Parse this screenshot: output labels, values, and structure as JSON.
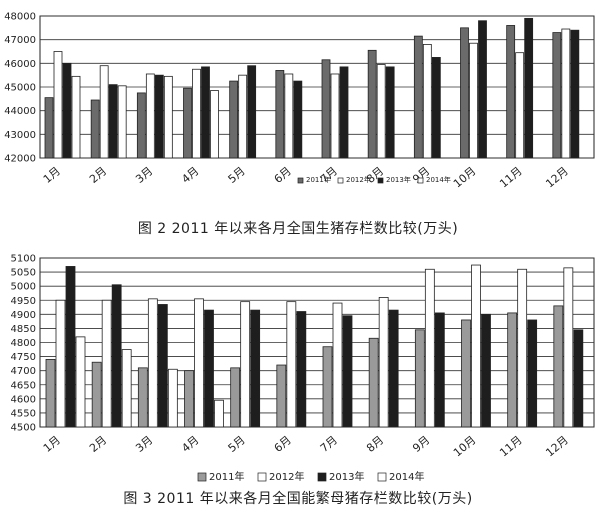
{
  "chart_data": [
    {
      "type": "bar",
      "title": "图 2   2011 年以来各月全国生猪存栏数比较(万头)",
      "xlabel": "",
      "ylabel": "",
      "ylim": [
        42000,
        48000
      ],
      "yticks": [
        42000,
        43000,
        44000,
        45000,
        46000,
        47000,
        48000
      ],
      "grid": true,
      "legend_position": "bottom-center",
      "categories": [
        "1月",
        "2月",
        "3月",
        "4月",
        "5月",
        "6月",
        "7月",
        "8月",
        "9月",
        "10月",
        "11月",
        "12月"
      ],
      "series": [
        {
          "name": "2011年",
          "color": "#6b6b6b",
          "values": [
            44550,
            44450,
            44750,
            44950,
            45250,
            45700,
            46150,
            46550,
            47150,
            47500,
            47600,
            47300
          ]
        },
        {
          "name": "2012年",
          "color": "#ffffff",
          "values": [
            46500,
            45900,
            45550,
            45750,
            45500,
            45550,
            45550,
            45950,
            46800,
            46850,
            46450,
            47450
          ]
        },
        {
          "name": "2013年",
          "color": "#1e1e1e",
          "values": [
            46000,
            45100,
            45500,
            45850,
            45900,
            45250,
            45850,
            45850,
            46250,
            47800,
            47900,
            47400
          ]
        },
        {
          "name": "2014年",
          "color": "#ffffff",
          "values": [
            45450,
            45050,
            45450,
            44850,
            null,
            null,
            null,
            null,
            null,
            null,
            null,
            null
          ]
        }
      ]
    },
    {
      "type": "bar",
      "title": "图 3   2011 年以来各月全国能繁母猪存栏数比较(万头)",
      "xlabel": "",
      "ylabel": "",
      "ylim": [
        4500,
        5100
      ],
      "yticks": [
        4500,
        4550,
        4600,
        4650,
        4700,
        4750,
        4800,
        4850,
        4900,
        4950,
        5000,
        5050,
        5100
      ],
      "grid": true,
      "legend_position": "bottom-center",
      "categories": [
        "1月",
        "2月",
        "3月",
        "4月",
        "5月",
        "6月",
        "7月",
        "8月",
        "9月",
        "10月",
        "11月",
        "12月"
      ],
      "series": [
        {
          "name": "2011年",
          "color": "#9a9a9a",
          "values": [
            4740,
            4730,
            4710,
            4700,
            4710,
            4720,
            4785,
            4815,
            4845,
            4880,
            4905,
            4930
          ]
        },
        {
          "name": "2012年",
          "color": "#ffffff",
          "values": [
            4950,
            4950,
            4955,
            4955,
            4945,
            4945,
            4940,
            4960,
            5060,
            5075,
            5060,
            5065
          ]
        },
        {
          "name": "2013年",
          "color": "#1e1e1e",
          "values": [
            5070,
            5005,
            4935,
            4915,
            4915,
            4910,
            4895,
            4915,
            4905,
            4900,
            4880,
            4845
          ]
        },
        {
          "name": "2014年",
          "color": "#ffffff",
          "values": [
            4820,
            4775,
            4705,
            4595,
            null,
            null,
            null,
            null,
            null,
            null,
            null,
            null
          ]
        }
      ]
    }
  ]
}
